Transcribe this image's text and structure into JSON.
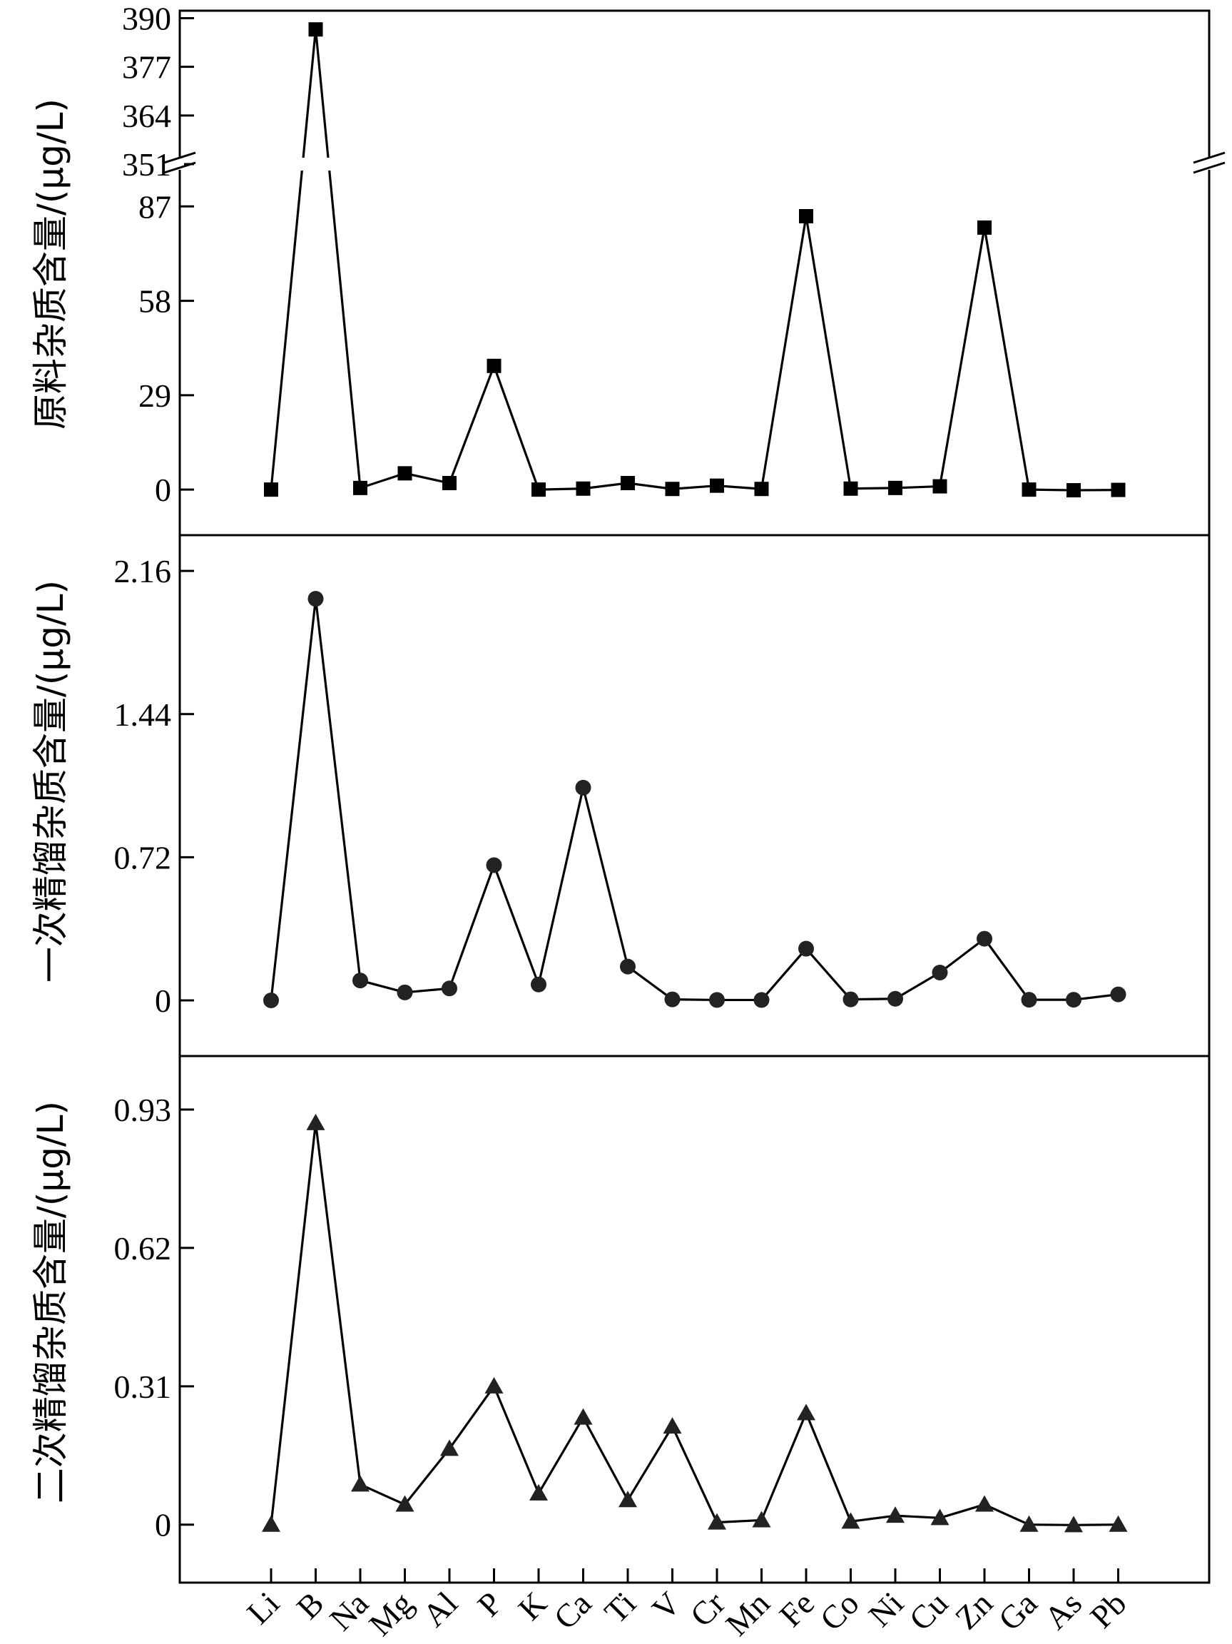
{
  "chart_data": {
    "type": "line",
    "categories": [
      "Li",
      "B",
      "Na",
      "Mg",
      "Al",
      "P",
      "K",
      "Ca",
      "Ti",
      "V",
      "Cr",
      "Mn",
      "Fe",
      "Co",
      "Ni",
      "Cu",
      "Zn",
      "Ga",
      "As",
      "Pb"
    ],
    "panels": [
      {
        "name": "raw",
        "ylabel": "原料杂质含量/(μg/L)",
        "marker": "square",
        "broken_axis": true,
        "lower_range": [
          -14,
          100
        ],
        "upper_range": [
          351,
          392
        ],
        "lower_ticks": [
          0,
          29,
          58,
          87
        ],
        "upper_ticks": [
          351,
          364,
          377,
          390
        ],
        "values": [
          0,
          387,
          0.5,
          5,
          2,
          38,
          0,
          0.3,
          2,
          0.2,
          1.2,
          0.2,
          84,
          0.3,
          0.5,
          1,
          80.5,
          0,
          -0.2,
          -0.1
        ]
      },
      {
        "name": "first_distillation",
        "ylabel": "一次精馏杂质含量/(μg/L)",
        "marker": "circle",
        "ylim": [
          -0.28,
          2.34
        ],
        "ticks": [
          0,
          0.72,
          1.44,
          2.16
        ],
        "tick_labels": [
          "0",
          "0.72",
          "1.44",
          "2.16"
        ],
        "values": [
          0,
          2.02,
          0.1,
          0.04,
          0.06,
          0.68,
          0.08,
          1.07,
          0.17,
          0.005,
          0.002,
          0.002,
          0.26,
          0.005,
          0.008,
          0.14,
          0.31,
          0.003,
          0.003,
          0.03
        ]
      },
      {
        "name": "second_distillation",
        "ylabel": "二次精馏杂质含量/(μg/L)",
        "marker": "triangle",
        "ylim": [
          -0.13,
          1.05
        ],
        "ticks": [
          0,
          0.31,
          0.62,
          0.93
        ],
        "tick_labels": [
          "0",
          "0.31",
          "0.62",
          "0.93"
        ],
        "values": [
          0,
          0.9,
          0.09,
          0.045,
          0.17,
          0.31,
          0.07,
          0.24,
          0.055,
          0.22,
          0.005,
          0.01,
          0.25,
          0.007,
          0.02,
          0.015,
          0.045,
          0.0,
          -0.001,
          0.0
        ]
      }
    ]
  }
}
